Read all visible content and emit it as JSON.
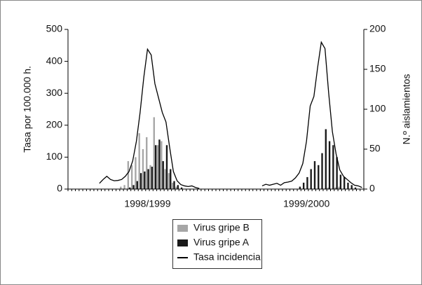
{
  "chart_data": {
    "type": "bar",
    "y_label": "Tasa por 100.000 h.",
    "y2_label": "N.º aislamientos",
    "ylim": [
      0,
      500
    ],
    "yticks": [
      0,
      100,
      200,
      300,
      400,
      500
    ],
    "y2lim": [
      0,
      200
    ],
    "y2ticks": [
      0,
      50,
      100,
      150,
      200
    ],
    "categories": [
      null,
      null,
      null,
      null,
      null,
      null,
      null,
      null,
      null,
      null,
      null,
      null,
      null,
      null,
      null,
      null,
      null,
      null,
      null,
      null,
      null,
      "1998/1999",
      null,
      null,
      null,
      null,
      null,
      null,
      null,
      null,
      null,
      null,
      null,
      null,
      null,
      null,
      null,
      null,
      null,
      null,
      null,
      null,
      null,
      null,
      null,
      null,
      null,
      null,
      null,
      null,
      null,
      null,
      null,
      null,
      null,
      null,
      null,
      null,
      null,
      null,
      null,
      null,
      null,
      null,
      "1999/2000",
      null,
      null,
      null,
      null,
      null,
      null,
      null,
      null,
      null,
      null,
      null,
      null,
      null,
      null,
      null
    ],
    "series": [
      {
        "name": "Virus gripe B",
        "type": "bar",
        "axis": "y2",
        "color": "#a6a6a6",
        "values": [
          null,
          null,
          null,
          null,
          null,
          null,
          null,
          null,
          null,
          null,
          null,
          null,
          null,
          null,
          3,
          5,
          35,
          30,
          40,
          70,
          50,
          65,
          30,
          90,
          55,
          60,
          25,
          20,
          8,
          3,
          null,
          null,
          null,
          null,
          null,
          null,
          null,
          null,
          null,
          null,
          null,
          null,
          null,
          null,
          null,
          null,
          null,
          null,
          null,
          null,
          null,
          null,
          null,
          null,
          null,
          null,
          null,
          null,
          null,
          null,
          null,
          null,
          null,
          null,
          null,
          null,
          null,
          null,
          null,
          null,
          2,
          null,
          2,
          3,
          null,
          null,
          null,
          null,
          null,
          null
        ]
      },
      {
        "name": "Virus gripe A",
        "type": "bar",
        "axis": "y2",
        "color": "#1a1a1a",
        "values": [
          null,
          null,
          null,
          null,
          null,
          null,
          null,
          null,
          null,
          null,
          null,
          null,
          null,
          null,
          null,
          null,
          2,
          5,
          10,
          20,
          22,
          25,
          28,
          55,
          62,
          35,
          55,
          25,
          10,
          5,
          2,
          null,
          null,
          null,
          null,
          null,
          null,
          null,
          null,
          null,
          null,
          null,
          null,
          null,
          null,
          null,
          null,
          null,
          null,
          null,
          null,
          null,
          null,
          null,
          null,
          null,
          null,
          null,
          null,
          null,
          null,
          null,
          3,
          8,
          15,
          25,
          35,
          30,
          45,
          75,
          60,
          55,
          40,
          18,
          15,
          8,
          5,
          2,
          null,
          null
        ]
      },
      {
        "name": "Tasa incidencia",
        "type": "line",
        "color": "#000000",
        "values": [
          null,
          null,
          null,
          null,
          null,
          null,
          null,
          null,
          18,
          30,
          40,
          30,
          26,
          27,
          30,
          40,
          55,
          88,
          150,
          240,
          350,
          438,
          420,
          330,
          285,
          240,
          210,
          130,
          55,
          26,
          14,
          10,
          8,
          10,
          5,
          2,
          null,
          null,
          null,
          null,
          null,
          null,
          null,
          null,
          null,
          null,
          null,
          null,
          null,
          null,
          null,
          null,
          10,
          15,
          12,
          15,
          18,
          12,
          20,
          22,
          25,
          35,
          50,
          80,
          150,
          260,
          290,
          380,
          460,
          440,
          300,
          180,
          110,
          60,
          40,
          30,
          20,
          12,
          10,
          5
        ]
      }
    ]
  }
}
